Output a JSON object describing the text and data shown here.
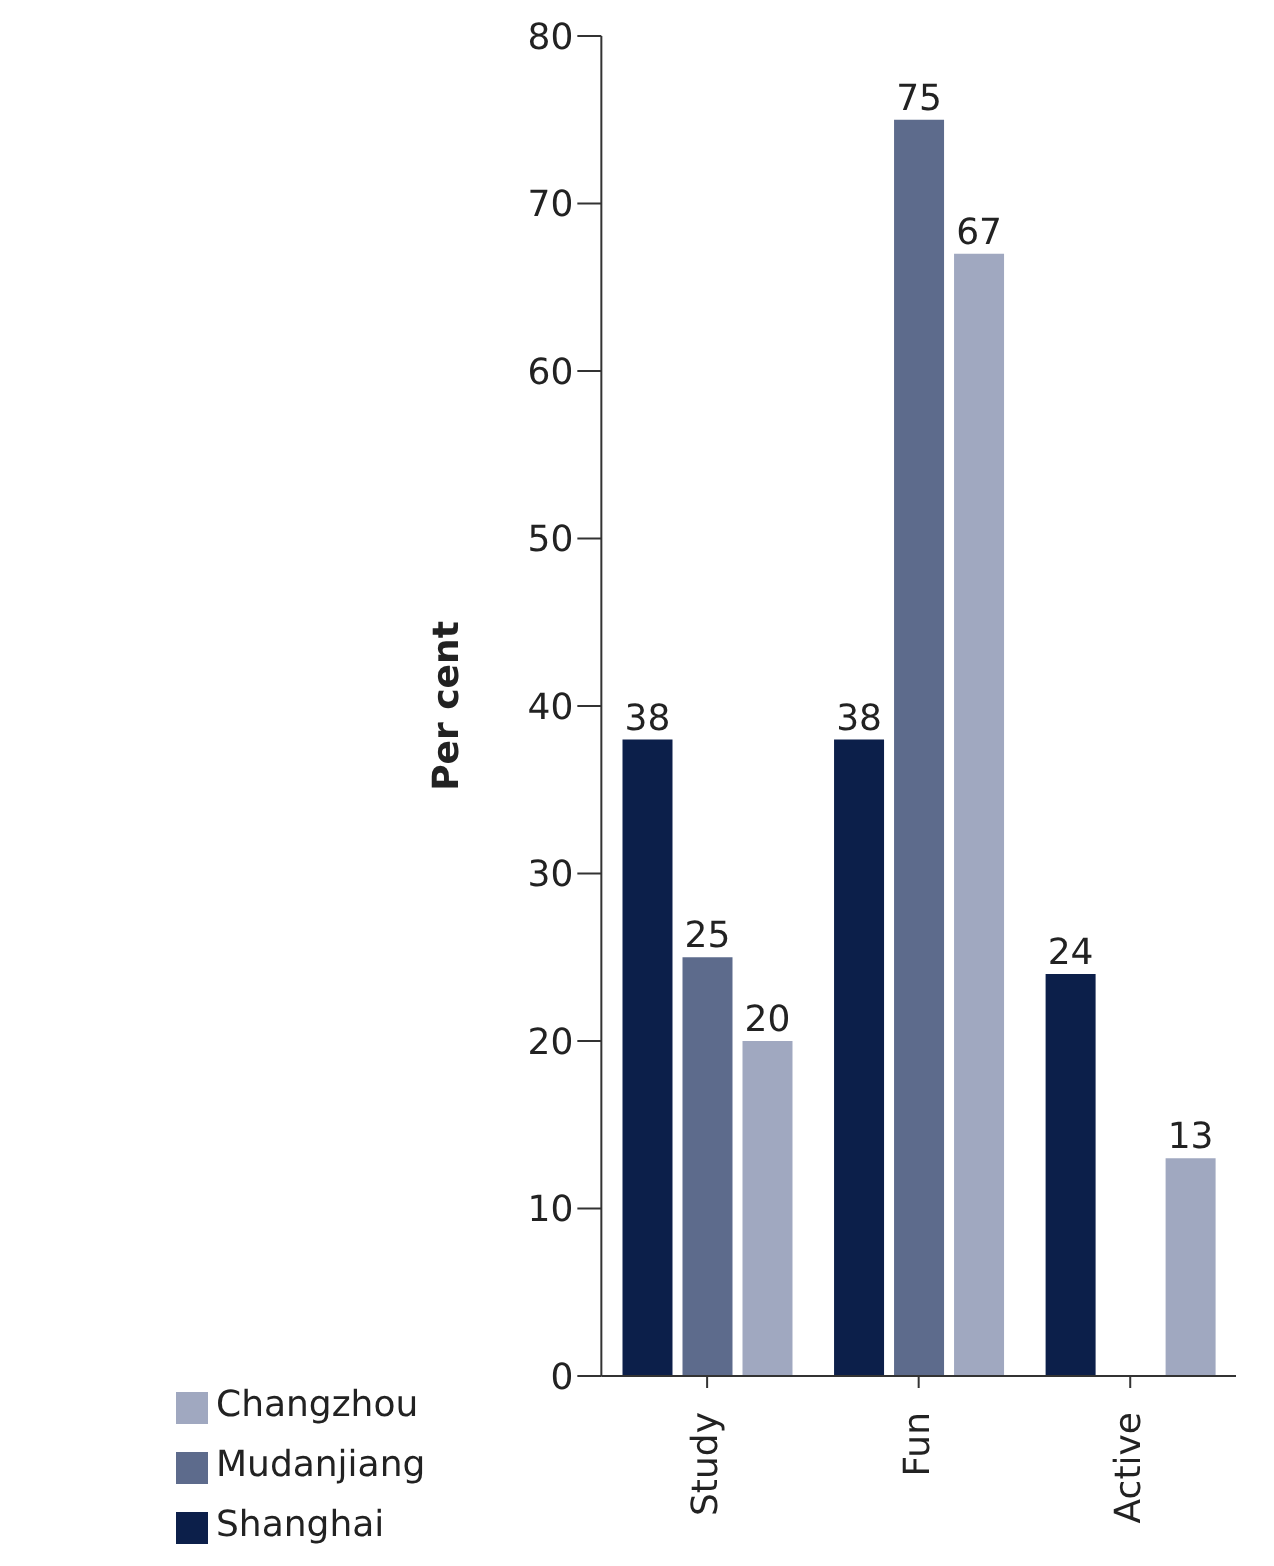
{
  "chart_data": {
    "type": "bar",
    "ylabel": "Per cent",
    "categories": [
      "Study",
      "Fun",
      "Active"
    ],
    "series": [
      {
        "name": "Shanghai",
        "color": "#0c1f4a",
        "values": [
          38,
          38,
          24
        ]
      },
      {
        "name": "Mudanjiang",
        "color": "#5d6b8c",
        "values": [
          25,
          75,
          null
        ]
      },
      {
        "name": "Changzhou",
        "color": "#a0a8c0",
        "values": [
          20,
          67,
          13
        ]
      }
    ],
    "ylim": [
      0,
      80
    ],
    "yticks": [
      0,
      10,
      20,
      30,
      40,
      50,
      60,
      70,
      80
    ],
    "grid": false,
    "legend": "bottom left",
    "data_labels": true
  }
}
